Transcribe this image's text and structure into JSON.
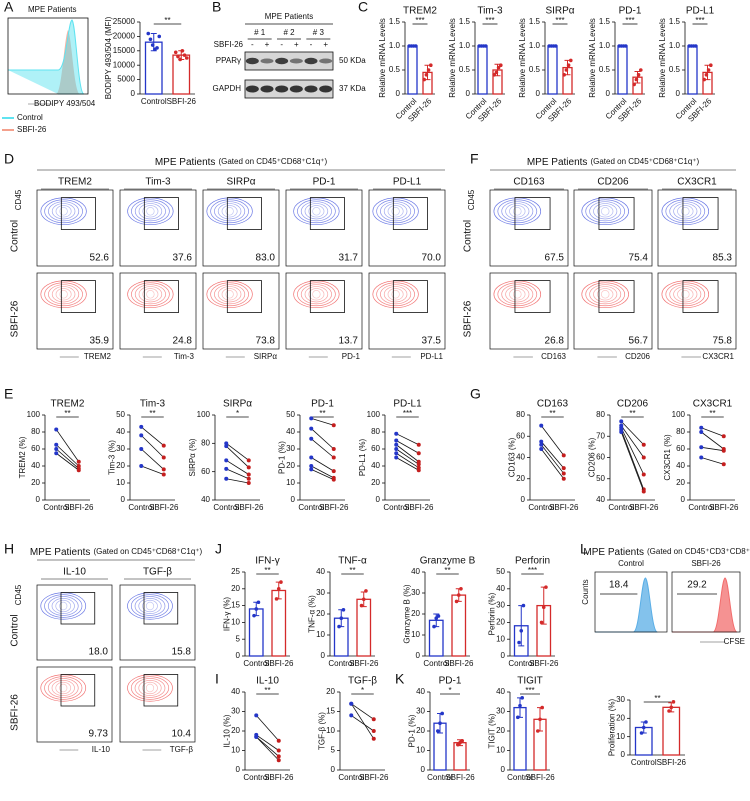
{
  "panel_labels": [
    "A",
    "B",
    "C",
    "D",
    "E",
    "F",
    "G",
    "H",
    "I",
    "J",
    "K",
    "L"
  ],
  "histogram_a": {
    "title": "MPE Patients",
    "x_label": "BODIPY 493/504",
    "legend": [
      {
        "name": "Control",
        "color": "#5fe3f0"
      },
      {
        "name": "SBFI-26",
        "color": "#f4a08c"
      }
    ]
  },
  "blot": {
    "title": "MPE Patients",
    "treatment": "SBFI-26",
    "lanes": [
      "# 1",
      "# 2",
      "# 3"
    ],
    "signs": [
      "-",
      "+",
      "-",
      "+",
      "-",
      "+"
    ],
    "bands": [
      {
        "name": "PPARγ",
        "size": "50 KDa"
      },
      {
        "name": "GAPDH",
        "size": "37 KDa"
      }
    ]
  },
  "flow_grids": [
    {
      "title": "MPE Patients",
      "gating": "(Gated on CD45⁺CD68⁺C1q⁺)",
      "y_label": "CD45",
      "rows": [
        "Control",
        "SBFI-26"
      ],
      "columns": [
        "TREM2",
        "Tim-3",
        "SIRPα",
        "PD-1",
        "PD-L1"
      ],
      "percentages": [
        [
          "52.6",
          "37.6",
          "83.0",
          "31.7",
          "70.0"
        ],
        [
          "35.9",
          "24.8",
          "73.8",
          "13.7",
          "37.5"
        ]
      ]
    },
    {
      "title": "MPE Patients",
      "gating": "(Gated on CD45⁺CD68⁺C1q⁺)",
      "y_label": "CD45",
      "rows": [
        "Control",
        "SBFI-26"
      ],
      "columns": [
        "CD163",
        "CD206",
        "CX3CR1"
      ],
      "percentages": [
        [
          "67.5",
          "75.4",
          "85.3"
        ],
        [
          "26.8",
          "56.7",
          "75.8"
        ]
      ]
    },
    {
      "title": "MPE Patients",
      "gating": "(Gated on CD45⁺CD68⁺C1q⁺)",
      "y_label": "CD45",
      "rows": [
        "Control",
        "SBFI-26"
      ],
      "columns": [
        "IL-10",
        "TGF-β"
      ],
      "percentages": [
        [
          "18.0",
          "15.8"
        ],
        [
          "9.73",
          "10.4"
        ]
      ]
    }
  ],
  "cfse": {
    "title": "MPE Patients",
    "gating": "(Gated on CD45⁺CD3⁺CD8⁺)",
    "columns": [
      "Control",
      "SBFI-26"
    ],
    "y_label": "Counts",
    "x_label": "CFSE",
    "percentages": [
      "18.4",
      "29.2"
    ]
  },
  "chart_data": [
    {
      "type": "bar",
      "ylabel": "BODIPY 493/504 (MFI)",
      "categories": [
        "Control",
        "SBFI-26"
      ],
      "values": [
        18000,
        13500
      ],
      "errors": [
        3000,
        1500
      ],
      "points": [
        [
          21000,
          19000,
          17000,
          15500,
          16000,
          20000
        ],
        [
          14500,
          13000,
          12000,
          15000,
          13500,
          12500
        ]
      ],
      "colors": [
        "#2436c8",
        "#d42a2a"
      ],
      "ylim": [
        0,
        25000
      ],
      "yticks": [
        0,
        5000,
        10000,
        15000,
        20000,
        25000
      ],
      "significance": "**"
    },
    {
      "type": "bar",
      "title": "TREM2",
      "ylabel": "Relative mRNA Levels",
      "categories": [
        "Control",
        "SBFI-26"
      ],
      "values": [
        1,
        0.45
      ],
      "errors": [
        0,
        0.15
      ],
      "points": [
        [
          1,
          1,
          1,
          1
        ],
        [
          0.3,
          0.4,
          0.5,
          0.6
        ]
      ],
      "colors": [
        "#2436c8",
        "#d42a2a"
      ],
      "ylim": [
        0,
        1.5
      ],
      "yticks": [
        0,
        0.5,
        {
          "value": 1,
          "label": "1.0"
        },
        1.5
      ],
      "significance": "***"
    },
    {
      "type": "bar",
      "title": "Tim-3",
      "ylabel": "Relative mRNA Levels",
      "categories": [
        "Control",
        "SBFI-26"
      ],
      "values": [
        1,
        0.5
      ],
      "errors": [
        0,
        0.12
      ],
      "points": [
        [
          1,
          1,
          1,
          1
        ],
        [
          0.4,
          0.45,
          0.55,
          0.6
        ]
      ],
      "colors": [
        "#2436c8",
        "#d42a2a"
      ],
      "ylim": [
        0,
        1.5
      ],
      "yticks": [
        0,
        0.5,
        {
          "value": 1,
          "label": "1.0"
        },
        1.5
      ],
      "significance": "***"
    },
    {
      "type": "bar",
      "title": "SIRPα",
      "ylabel": "Relative mRNA Levels",
      "categories": [
        "Control",
        "SBFI-26"
      ],
      "values": [
        1,
        0.55
      ],
      "errors": [
        0,
        0.15
      ],
      "points": [
        [
          1,
          1,
          1,
          1
        ],
        [
          0.4,
          0.5,
          0.6,
          0.7
        ]
      ],
      "colors": [
        "#2436c8",
        "#d42a2a"
      ],
      "ylim": [
        0,
        1.5
      ],
      "yticks": [
        0,
        0.5,
        {
          "value": 1,
          "label": "1.0"
        },
        1.5
      ],
      "significance": "***"
    },
    {
      "type": "bar",
      "title": "PD-1",
      "ylabel": "Relative mRNA Levels",
      "categories": [
        "Control",
        "SBFI-26"
      ],
      "values": [
        1,
        0.35
      ],
      "errors": [
        0,
        0.12
      ],
      "points": [
        [
          1,
          1,
          1,
          1
        ],
        [
          0.2,
          0.3,
          0.4,
          0.5
        ]
      ],
      "colors": [
        "#2436c8",
        "#d42a2a"
      ],
      "ylim": [
        0,
        1.5
      ],
      "yticks": [
        0,
        0.5,
        {
          "value": 1,
          "label": "1.0"
        },
        1.5
      ],
      "significance": "***"
    },
    {
      "type": "bar",
      "title": "PD-L1",
      "ylabel": "Relative mRNA Levels",
      "categories": [
        "Control",
        "SBFI-26"
      ],
      "values": [
        1,
        0.45
      ],
      "errors": [
        0,
        0.15
      ],
      "points": [
        [
          1,
          1,
          1,
          1
        ],
        [
          0.3,
          0.4,
          0.5,
          0.6
        ]
      ],
      "colors": [
        "#2436c8",
        "#d42a2a"
      ],
      "ylim": [
        0,
        1.5
      ],
      "yticks": [
        0,
        0.5,
        {
          "value": 1,
          "label": "1.0"
        },
        1.5
      ],
      "significance": "***"
    },
    {
      "type": "paired",
      "title": "TREM2",
      "ylabel": "TREM2 (%)",
      "categories": [
        "Control",
        "SBFI-26"
      ],
      "pairs": [
        [
          83,
          45
        ],
        [
          65,
          40
        ],
        [
          60,
          37
        ],
        [
          55,
          35
        ]
      ],
      "colors": [
        "#2436c8",
        "#c41e1e"
      ],
      "ylim": [
        0,
        100
      ],
      "yticks": [
        0,
        20,
        40,
        60,
        80,
        100
      ],
      "significance": "**"
    },
    {
      "type": "paired",
      "title": "Tim-3",
      "ylabel": "Tim-3 (%)",
      "categories": [
        "Control",
        "SBFI-26"
      ],
      "pairs": [
        [
          43,
          32
        ],
        [
          38,
          25
        ],
        [
          30,
          18
        ],
        [
          20,
          15
        ]
      ],
      "colors": [
        "#2436c8",
        "#c41e1e"
      ],
      "ylim": [
        0,
        50
      ],
      "yticks": [
        0,
        10,
        20,
        30,
        40,
        50
      ],
      "significance": "**"
    },
    {
      "type": "paired",
      "title": "SIRPα",
      "ylabel": "SIRPα (%)",
      "categories": [
        "Control",
        "SBFI-26"
      ],
      "pairs": [
        [
          80,
          68
        ],
        [
          78,
          63
        ],
        [
          68,
          58
        ],
        [
          62,
          55
        ],
        [
          55,
          52
        ]
      ],
      "colors": [
        "#2436c8",
        "#c41e1e"
      ],
      "ylim": [
        40,
        100
      ],
      "yticks": [
        40,
        60,
        80,
        100
      ],
      "significance": "*"
    },
    {
      "type": "paired",
      "title": "PD-1",
      "ylabel": "PD-1 (%)",
      "categories": [
        "Control",
        "SBFI-26"
      ],
      "pairs": [
        [
          48,
          44
        ],
        [
          42,
          30
        ],
        [
          36,
          25
        ],
        [
          25,
          17
        ],
        [
          20,
          13
        ],
        [
          18,
          12
        ]
      ],
      "colors": [
        "#2436c8",
        "#c41e1e"
      ],
      "ylim": [
        0,
        50
      ],
      "yticks": [
        0,
        10,
        20,
        30,
        40,
        50
      ],
      "significance": "**"
    },
    {
      "type": "paired",
      "title": "PD-L1",
      "ylabel": "PD-L1 (%)",
      "categories": [
        "Control",
        "SBFI-26"
      ],
      "pairs": [
        [
          78,
          65
        ],
        [
          70,
          55
        ],
        [
          65,
          45
        ],
        [
          60,
          42
        ],
        [
          55,
          38
        ],
        [
          50,
          35
        ]
      ],
      "colors": [
        "#2436c8",
        "#c41e1e"
      ],
      "ylim": [
        0,
        100
      ],
      "yticks": [
        0,
        20,
        40,
        60,
        80,
        100
      ],
      "significance": "***"
    },
    {
      "type": "paired",
      "title": "CD163",
      "ylabel": "CD163 (%)",
      "categories": [
        "Control",
        "SBFI-26"
      ],
      "pairs": [
        [
          70,
          42
        ],
        [
          55,
          30
        ],
        [
          52,
          25
        ],
        [
          48,
          20
        ]
      ],
      "colors": [
        "#2436c8",
        "#c41e1e"
      ],
      "ylim": [
        0,
        80
      ],
      "yticks": [
        0,
        20,
        40,
        60,
        80
      ],
      "significance": "**"
    },
    {
      "type": "paired",
      "title": "CD206",
      "ylabel": "CD206 (%)",
      "categories": [
        "Control",
        "SBFI-26"
      ],
      "pairs": [
        [
          77,
          66
        ],
        [
          75,
          60
        ],
        [
          74,
          52
        ],
        [
          73,
          45
        ],
        [
          72,
          44
        ]
      ],
      "colors": [
        "#2436c8",
        "#c41e1e"
      ],
      "ylim": [
        40,
        80
      ],
      "yticks": [
        40,
        50,
        60,
        70,
        80
      ],
      "significance": "**"
    },
    {
      "type": "paired",
      "title": "CX3CR1",
      "ylabel": "CX3CR1 (%)",
      "categories": [
        "Control",
        "SBFI-26"
      ],
      "pairs": [
        [
          85,
          75
        ],
        [
          80,
          60
        ],
        [
          62,
          58
        ],
        [
          50,
          42
        ]
      ],
      "colors": [
        "#2436c8",
        "#c41e1e"
      ],
      "ylim": [
        0,
        100
      ],
      "yticks": [
        0,
        20,
        40,
        60,
        80,
        100
      ],
      "significance": "**"
    },
    {
      "type": "bar",
      "title": "IFN-γ",
      "ylabel": "IFN-γ (%)",
      "categories": [
        "Control",
        "SBFI-26"
      ],
      "values": [
        14,
        19.5
      ],
      "errors": [
        2,
        2.5
      ],
      "points": [
        [
          12,
          14,
          16
        ],
        [
          17,
          20,
          22
        ]
      ],
      "colors": [
        "#2436c8",
        "#d42a2a"
      ],
      "ylim": [
        0,
        25
      ],
      "yticks": [
        0,
        5,
        10,
        15,
        20,
        25
      ],
      "significance": "**"
    },
    {
      "type": "bar",
      "title": "TNF-α",
      "ylabel": "TNF-α (%)",
      "categories": [
        "Control",
        "SBFI-26"
      ],
      "values": [
        18,
        27
      ],
      "errors": [
        4,
        3.5
      ],
      "points": [
        [
          14,
          18,
          22
        ],
        [
          24,
          27,
          31
        ]
      ],
      "colors": [
        "#2436c8",
        "#d42a2a"
      ],
      "ylim": [
        0,
        40
      ],
      "yticks": [
        0,
        10,
        20,
        30,
        40
      ],
      "significance": "**"
    },
    {
      "type": "bar",
      "title": "Granzyme B",
      "ylabel": "Granzyme B (%)",
      "categories": [
        "Control",
        "SBFI-26"
      ],
      "values": [
        17,
        29
      ],
      "errors": [
        3,
        3
      ],
      "points": [
        [
          14,
          18,
          19
        ],
        [
          26,
          29,
          32
        ]
      ],
      "colors": [
        "#2436c8",
        "#d42a2a"
      ],
      "ylim": [
        0,
        40
      ],
      "yticks": [
        0,
        10,
        20,
        30,
        40
      ],
      "significance": "**"
    },
    {
      "type": "bar",
      "title": "Perforin",
      "ylabel": "Perforin (%)",
      "categories": [
        "Control",
        "SBFI-26"
      ],
      "values": [
        18,
        30
      ],
      "errors": [
        12,
        11
      ],
      "points": [
        [
          8,
          15,
          30
        ],
        [
          20,
          29,
          41
        ]
      ],
      "colors": [
        "#2436c8",
        "#d42a2a"
      ],
      "ylim": [
        0,
        50
      ],
      "yticks": [
        0,
        10,
        20,
        30,
        40,
        50
      ],
      "significance": "***"
    },
    {
      "type": "paired",
      "title": "IL-10",
      "ylabel": "IL-10 (%)",
      "categories": [
        "Control",
        "SBFI-26"
      ],
      "pairs": [
        [
          28,
          15
        ],
        [
          18,
          10
        ],
        [
          17,
          7
        ],
        [
          17,
          5
        ]
      ],
      "colors": [
        "#2436c8",
        "#c41e1e"
      ],
      "ylim": [
        0,
        40
      ],
      "yticks": [
        0,
        10,
        20,
        30,
        40
      ],
      "significance": "**"
    },
    {
      "type": "paired",
      "title": "TGF-β",
      "ylabel": "TGF-β (%)",
      "categories": [
        "Control",
        "SBFI-26"
      ],
      "pairs": [
        [
          17,
          13
        ],
        [
          17,
          8
        ],
        [
          14,
          10
        ]
      ],
      "colors": [
        "#2436c8",
        "#c41e1e"
      ],
      "ylim": [
        0,
        20
      ],
      "yticks": [
        0,
        5,
        10,
        15,
        20
      ],
      "significance": "*"
    },
    {
      "type": "bar",
      "title": "PD-1",
      "ylabel": "PD-1 (%)",
      "categories": [
        "Control",
        "SBFI-26"
      ],
      "values": [
        24,
        14
      ],
      "errors": [
        5,
        1.5
      ],
      "points": [
        [
          20,
          24,
          29
        ],
        [
          13,
          14,
          15
        ]
      ],
      "colors": [
        "#2436c8",
        "#d42a2a"
      ],
      "ylim": [
        0,
        40
      ],
      "yticks": [
        0,
        10,
        20,
        30,
        40
      ],
      "significance": "*"
    },
    {
      "type": "bar",
      "title": "TIGIT",
      "ylabel": "TIGIT (%)",
      "categories": [
        "Control",
        "SBFI-26"
      ],
      "values": [
        32,
        26
      ],
      "errors": [
        5,
        6
      ],
      "points": [
        [
          27,
          33,
          37
        ],
        [
          20,
          26,
          32
        ]
      ],
      "colors": [
        "#2436c8",
        "#d42a2a"
      ],
      "ylim": [
        0,
        40
      ],
      "yticks": [
        0,
        10,
        20,
        30,
        40
      ],
      "significance": "***"
    },
    {
      "type": "bar",
      "ylabel": "Proliferation (%)",
      "categories": [
        "Control",
        "SBFI-26"
      ],
      "values": [
        15,
        26
      ],
      "errors": [
        3,
        2.5
      ],
      "points": [
        [
          12,
          15,
          18
        ],
        [
          24,
          26,
          29
        ]
      ],
      "colors": [
        "#2436c8",
        "#d42a2a"
      ],
      "ylim": [
        0,
        30
      ],
      "yticks": [
        0,
        10,
        20,
        30
      ],
      "significance": "**"
    }
  ]
}
